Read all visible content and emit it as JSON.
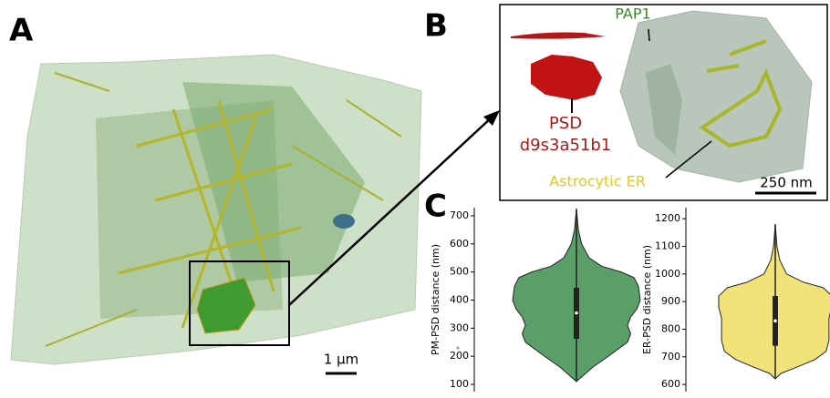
{
  "panels": {
    "a": "A",
    "b": "B",
    "c": "C"
  },
  "panel_a": {
    "scale_bar": "1 µm"
  },
  "panel_b": {
    "pap_label": "PAP1",
    "psd_label": "PSD",
    "psd_id": "d9s3a51b1",
    "er_label": "Astrocytic ER",
    "scale_bar": "250 nm"
  },
  "chart_data": [
    {
      "type": "violin",
      "y_label": "PM-PSD distance (nm)",
      "color": "#5a9e6a",
      "ylim": [
        74,
        729
      ],
      "yticks": [
        100,
        200,
        300,
        400,
        500,
        600,
        700
      ],
      "min": 110,
      "q1": 262,
      "median": 354,
      "q3": 444,
      "max": 725,
      "density": {
        "y": [
          725,
          650,
          600,
          550,
          520,
          500,
          480,
          450,
          400,
          370,
          340,
          310,
          280,
          250,
          200,
          160,
          130,
          110
        ],
        "width": [
          0,
          0.03,
          0.08,
          0.2,
          0.4,
          0.7,
          0.9,
          0.97,
          1.0,
          0.95,
          0.85,
          0.8,
          0.85,
          0.8,
          0.5,
          0.25,
          0.1,
          0
        ]
      }
    },
    {
      "type": "violin",
      "y_label": "ER-PSD distance (nm)",
      "color": "#f2e27a",
      "ylim": [
        574,
        1240
      ],
      "yticks": [
        600,
        700,
        800,
        900,
        1000,
        1100,
        1200
      ],
      "min": 620,
      "q1": 740,
      "median": 830,
      "q3": 920,
      "max": 1180,
      "density": {
        "y": [
          1180,
          1100,
          1050,
          1000,
          970,
          950,
          920,
          880,
          840,
          800,
          760,
          720,
          690,
          660,
          640,
          620
        ],
        "width": [
          0,
          0.03,
          0.08,
          0.2,
          0.5,
          0.85,
          1.0,
          1.0,
          0.95,
          0.95,
          0.95,
          0.9,
          0.7,
          0.35,
          0.1,
          0
        ]
      }
    }
  ]
}
